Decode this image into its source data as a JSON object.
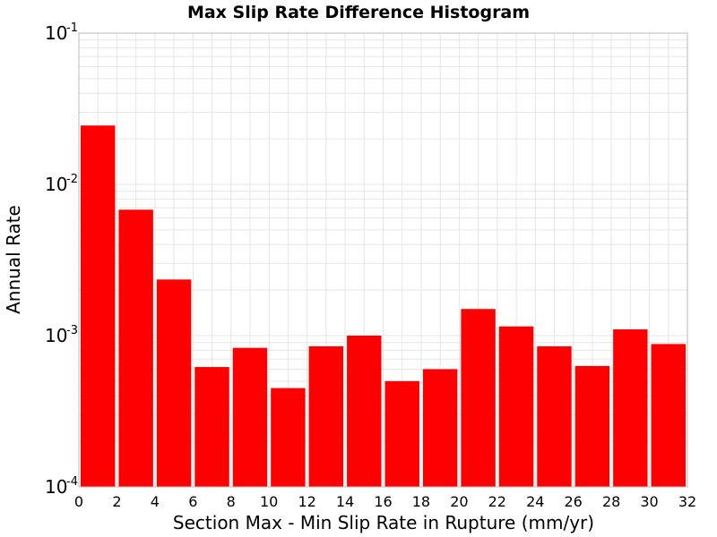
{
  "chart_data": {
    "type": "bar",
    "title": "Max Slip Rate Difference Histogram",
    "xlabel": "Section Max - Min Slip Rate in Rupture (mm/yr)",
    "ylabel": "Annual Rate",
    "y_scale": "log",
    "ylim": [
      0.0001,
      0.1
    ],
    "xlim": [
      0,
      32
    ],
    "x_ticks": [
      "0",
      "2",
      "4",
      "6",
      "8",
      "10",
      "12",
      "14",
      "16",
      "18",
      "20",
      "22",
      "24",
      "26",
      "28",
      "30",
      "32"
    ],
    "y_ticks": [
      {
        "base": "10",
        "exp": "-4",
        "value": 0.0001
      },
      {
        "base": "10",
        "exp": "-3",
        "value": 0.001
      },
      {
        "base": "10",
        "exp": "-2",
        "value": 0.01
      },
      {
        "base": "10",
        "exp": "-1",
        "value": 0.1
      }
    ],
    "bin_width": 2,
    "bins": [
      {
        "x0": 0,
        "x1": 2,
        "value": 0.0245
      },
      {
        "x0": 2,
        "x1": 4,
        "value": 0.0068
      },
      {
        "x0": 4,
        "x1": 6,
        "value": 0.00235
      },
      {
        "x0": 6,
        "x1": 8,
        "value": 0.00062
      },
      {
        "x0": 8,
        "x1": 10,
        "value": 0.00083
      },
      {
        "x0": 10,
        "x1": 12,
        "value": 0.00045
      },
      {
        "x0": 12,
        "x1": 14,
        "value": 0.00085
      },
      {
        "x0": 14,
        "x1": 16,
        "value": 0.001
      },
      {
        "x0": 16,
        "x1": 18,
        "value": 0.0005
      },
      {
        "x0": 18,
        "x1": 20,
        "value": 0.0006
      },
      {
        "x0": 20,
        "x1": 22,
        "value": 0.0015
      },
      {
        "x0": 22,
        "x1": 24,
        "value": 0.00115
      },
      {
        "x0": 24,
        "x1": 26,
        "value": 0.00085
      },
      {
        "x0": 26,
        "x1": 28,
        "value": 0.00063
      },
      {
        "x0": 28,
        "x1": 30,
        "value": 0.0011
      },
      {
        "x0": 30,
        "x1": 32,
        "value": 0.00088
      }
    ],
    "grid": true,
    "legend": "none",
    "colors": {
      "bar": "#ff0000",
      "grid": "#e6e6e6",
      "frame": "#b8b8b8",
      "text": "#000000",
      "background": "#ffffff"
    }
  }
}
